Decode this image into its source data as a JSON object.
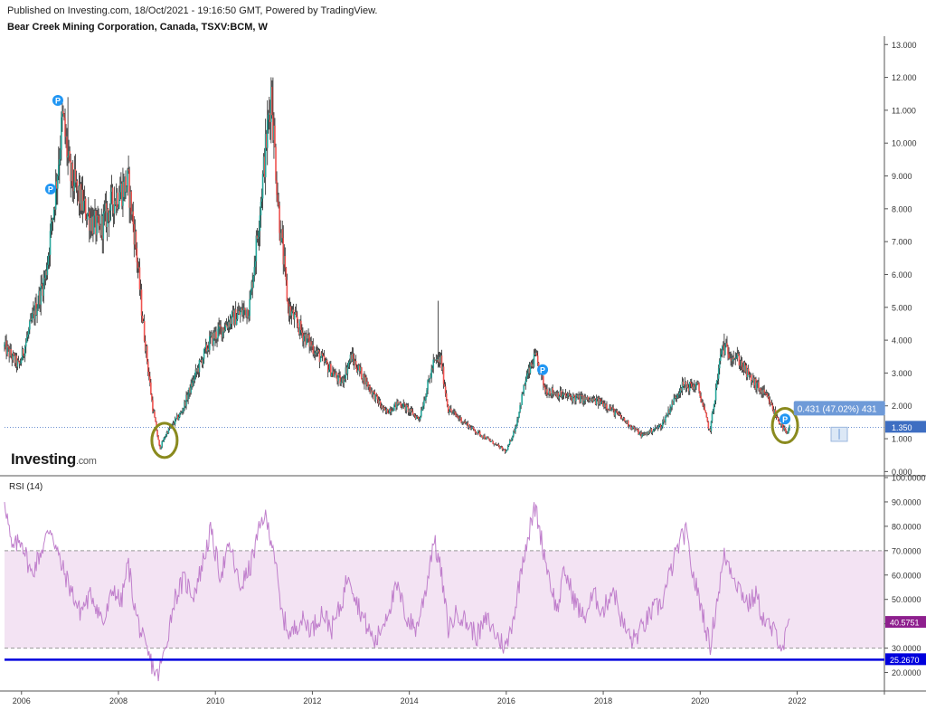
{
  "header": {
    "published": "Published on Investing.com, 18/Oct/2021 - 19:16:50 GMT, Powered by TradingView.",
    "title": "Bear Creek Mining Corporation, Canada, TSXV:BCM, W"
  },
  "logo": {
    "main": "Investing",
    "suffix": ".com"
  },
  "colors": {
    "up": "#26a69a",
    "down": "#ef5350",
    "wick": "#222222",
    "rsi": "#c07fcc",
    "rsi_band": "#f3e3f3",
    "support": "#0000dd",
    "price_line": "#3e6ec2",
    "circle": "#8a8a1e",
    "marker": "#2196f3",
    "measure": "#6e9ad8"
  },
  "chart_data": [
    {
      "type": "candlestick",
      "title": "Bear Creek Mining Corporation, Canada, TSXV:BCM, W",
      "x_ticks": [
        "2006",
        "2008",
        "2010",
        "2012",
        "2014",
        "2016",
        "2018",
        "2020",
        "2022"
      ],
      "y_ticks": [
        "0.000",
        "1.000",
        "2.000",
        "3.000",
        "4.000",
        "5.000",
        "6.000",
        "7.000",
        "8.000",
        "9.000",
        "10.000",
        "11.000",
        "12.000",
        "13.000"
      ],
      "xlim": [
        2005.65,
        2023.8
      ],
      "ylim": [
        -0.1,
        13.2
      ],
      "price_anchors": [
        [
          2005.65,
          3.8
        ],
        [
          2005.95,
          3.2
        ],
        [
          2006.2,
          4.5
        ],
        [
          2006.5,
          6.0
        ],
        [
          2006.7,
          8.5
        ],
        [
          2006.85,
          10.8
        ],
        [
          2007.0,
          9.0
        ],
        [
          2007.3,
          8.0
        ],
        [
          2007.6,
          7.3
        ],
        [
          2007.9,
          8.3
        ],
        [
          2008.2,
          8.8
        ],
        [
          2008.35,
          7.0
        ],
        [
          2008.5,
          4.6
        ],
        [
          2008.7,
          2.0
        ],
        [
          2008.85,
          0.7
        ],
        [
          2009.0,
          1.2
        ],
        [
          2009.3,
          1.8
        ],
        [
          2009.6,
          3.0
        ],
        [
          2009.9,
          4.0
        ],
        [
          2010.3,
          4.6
        ],
        [
          2010.7,
          5.0
        ],
        [
          2010.85,
          7.0
        ],
        [
          2011.05,
          10.0
        ],
        [
          2011.15,
          11.6
        ],
        [
          2011.3,
          8.0
        ],
        [
          2011.5,
          5.0
        ],
        [
          2011.8,
          4.2
        ],
        [
          2012.2,
          3.4
        ],
        [
          2012.6,
          2.7
        ],
        [
          2012.8,
          3.5
        ],
        [
          2013.2,
          2.5
        ],
        [
          2013.5,
          1.8
        ],
        [
          2013.8,
          2.1
        ],
        [
          2014.2,
          1.6
        ],
        [
          2014.5,
          3.3
        ],
        [
          2014.65,
          3.4
        ],
        [
          2014.8,
          1.9
        ],
        [
          2015.3,
          1.3
        ],
        [
          2015.8,
          0.8
        ],
        [
          2016.0,
          0.6
        ],
        [
          2016.2,
          1.4
        ],
        [
          2016.4,
          2.8
        ],
        [
          2016.6,
          3.5
        ],
        [
          2016.8,
          2.5
        ],
        [
          2017.2,
          2.3
        ],
        [
          2017.6,
          2.2
        ],
        [
          2018.0,
          2.1
        ],
        [
          2018.4,
          1.6
        ],
        [
          2018.8,
          1.1
        ],
        [
          2019.2,
          1.4
        ],
        [
          2019.6,
          2.6
        ],
        [
          2019.95,
          2.6
        ],
        [
          2020.2,
          1.2
        ],
        [
          2020.45,
          3.8
        ],
        [
          2020.8,
          3.4
        ],
        [
          2021.0,
          2.9
        ],
        [
          2021.4,
          2.2
        ],
        [
          2021.6,
          1.6
        ],
        [
          2021.8,
          1.1
        ],
        [
          2021.85,
          1.45
        ]
      ],
      "spikes": [
        {
          "x": 2014.6,
          "high": 5.2
        },
        {
          "x": 2020.5,
          "high": 4.2
        },
        {
          "x": 2011.18,
          "high": 12.0
        },
        {
          "x": 2006.95,
          "high": 11.4
        }
      ],
      "dividend_markers": [
        {
          "x": 2006.75,
          "y": 11.3
        },
        {
          "x": 2006.6,
          "y": 8.6
        },
        {
          "x": 2016.75,
          "y": 3.1
        },
        {
          "x": 2021.75,
          "y": 1.6
        }
      ],
      "highlights": [
        {
          "x": 2008.95,
          "y": 0.95
        },
        {
          "x": 2021.75,
          "y": 1.4
        }
      ],
      "current_price_line": 1.35,
      "last_label": "1.350",
      "measure_label": "0.431 (47.02%) 431"
    },
    {
      "type": "line",
      "title": "RSI (14)",
      "x_ticks": [
        "2006",
        "2008",
        "2010",
        "2012",
        "2014",
        "2016",
        "2018",
        "2020",
        "2022"
      ],
      "y_ticks": [
        "20.0000",
        "30.0000",
        "40.0000",
        "50.0000",
        "60.0000",
        "70.0000",
        "80.0000",
        "90.0000",
        "100.0000"
      ],
      "xlim": [
        2005.65,
        2023.8
      ],
      "ylim": [
        15,
        100
      ],
      "band": [
        30,
        70
      ],
      "support_level": 25.267,
      "support_label": "25.2670",
      "last_label": "40.5751",
      "rsi_anchors": [
        [
          2005.65,
          92
        ],
        [
          2005.8,
          70
        ],
        [
          2006.0,
          75
        ],
        [
          2006.2,
          60
        ],
        [
          2006.45,
          72
        ],
        [
          2006.6,
          80
        ],
        [
          2006.8,
          65
        ],
        [
          2007.0,
          55
        ],
        [
          2007.2,
          45
        ],
        [
          2007.45,
          52
        ],
        [
          2007.7,
          40
        ],
        [
          2007.9,
          55
        ],
        [
          2008.05,
          48
        ],
        [
          2008.2,
          65
        ],
        [
          2008.35,
          45
        ],
        [
          2008.55,
          30
        ],
        [
          2008.7,
          23
        ],
        [
          2008.8,
          18
        ],
        [
          2008.95,
          28
        ],
        [
          2009.15,
          50
        ],
        [
          2009.35,
          58
        ],
        [
          2009.55,
          52
        ],
        [
          2009.7,
          62
        ],
        [
          2009.9,
          78
        ],
        [
          2010.1,
          60
        ],
        [
          2010.3,
          72
        ],
        [
          2010.5,
          55
        ],
        [
          2010.7,
          62
        ],
        [
          2010.85,
          74
        ],
        [
          2011.0,
          85
        ],
        [
          2011.2,
          72
        ],
        [
          2011.35,
          45
        ],
        [
          2011.55,
          35
        ],
        [
          2011.75,
          42
        ],
        [
          2012.0,
          38
        ],
        [
          2012.2,
          45
        ],
        [
          2012.4,
          38
        ],
        [
          2012.6,
          48
        ],
        [
          2012.75,
          62
        ],
        [
          2012.9,
          50
        ],
        [
          2013.1,
          40
        ],
        [
          2013.3,
          32
        ],
        [
          2013.55,
          45
        ],
        [
          2013.75,
          55
        ],
        [
          2013.95,
          42
        ],
        [
          2014.15,
          38
        ],
        [
          2014.35,
          55
        ],
        [
          2014.5,
          75
        ],
        [
          2014.65,
          62
        ],
        [
          2014.8,
          38
        ],
        [
          2015.0,
          45
        ],
        [
          2015.2,
          40
        ],
        [
          2015.4,
          35
        ],
        [
          2015.6,
          42
        ],
        [
          2015.8,
          35
        ],
        [
          2016.0,
          30
        ],
        [
          2016.2,
          48
        ],
        [
          2016.35,
          68
        ],
        [
          2016.5,
          80
        ],
        [
          2016.6,
          88
        ],
        [
          2016.75,
          72
        ],
        [
          2016.9,
          58
        ],
        [
          2017.05,
          45
        ],
        [
          2017.2,
          62
        ],
        [
          2017.4,
          50
        ],
        [
          2017.6,
          42
        ],
        [
          2017.8,
          52
        ],
        [
          2018.0,
          45
        ],
        [
          2018.2,
          55
        ],
        [
          2018.4,
          40
        ],
        [
          2018.6,
          33
        ],
        [
          2018.8,
          38
        ],
        [
          2019.0,
          45
        ],
        [
          2019.2,
          48
        ],
        [
          2019.4,
          62
        ],
        [
          2019.55,
          72
        ],
        [
          2019.7,
          78
        ],
        [
          2019.85,
          60
        ],
        [
          2020.05,
          45
        ],
        [
          2020.2,
          30
        ],
        [
          2020.35,
          50
        ],
        [
          2020.5,
          68
        ],
        [
          2020.65,
          62
        ],
        [
          2020.8,
          55
        ],
        [
          2021.0,
          48
        ],
        [
          2021.15,
          52
        ],
        [
          2021.3,
          42
        ],
        [
          2021.45,
          38
        ],
        [
          2021.6,
          35
        ],
        [
          2021.7,
          30
        ],
        [
          2021.85,
          40.6
        ]
      ]
    }
  ]
}
